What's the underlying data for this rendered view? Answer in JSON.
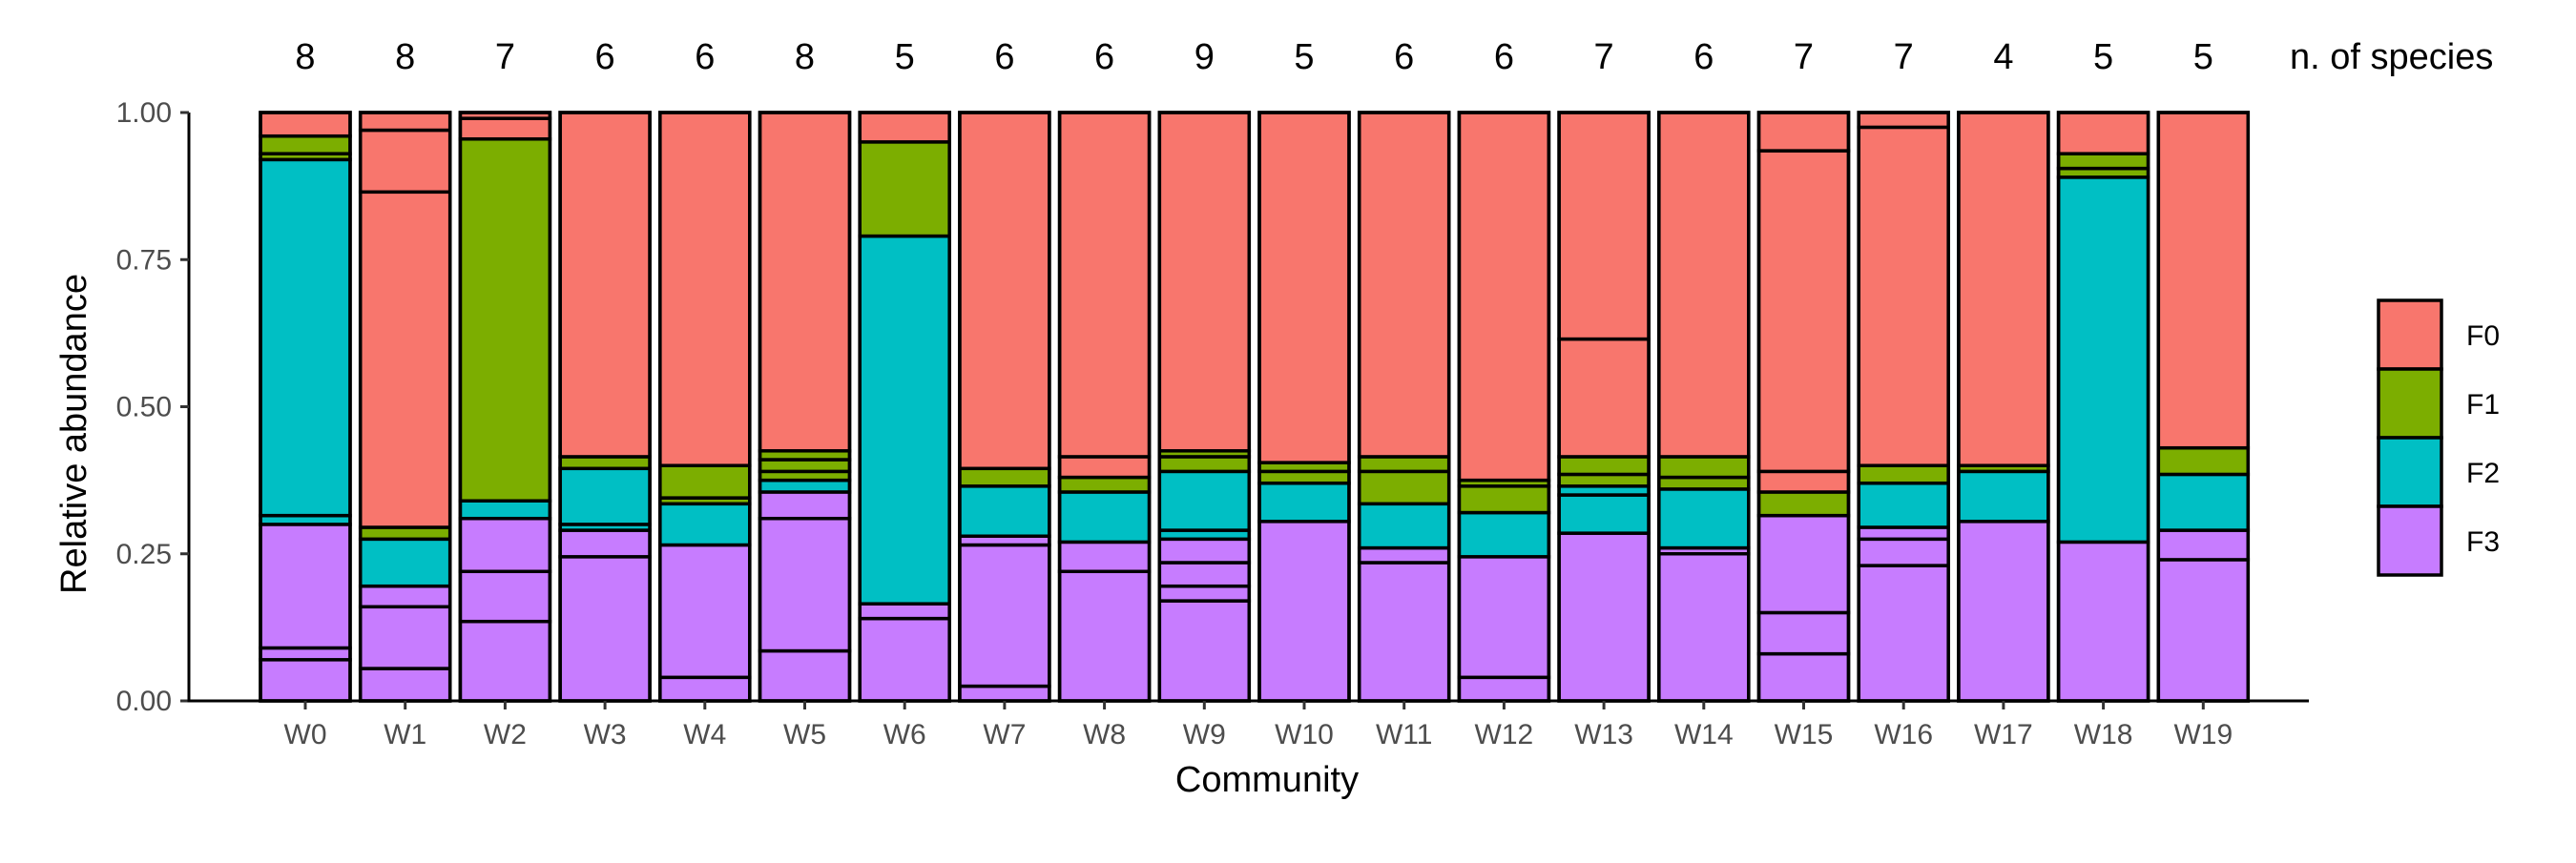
{
  "chart_data": {
    "type": "bar",
    "stacked": true,
    "xlabel": "Community",
    "ylabel": "Relative abundance",
    "ylim": [
      0,
      1
    ],
    "yticks": [
      "0.00",
      "0.25",
      "0.50",
      "0.75",
      "1.00"
    ],
    "count_header": "n. of species",
    "legend": {
      "position": "right",
      "title": ""
    },
    "groups": [
      {
        "name": "F0",
        "color": "#F8766D"
      },
      {
        "name": "F1",
        "color": "#7CAE00"
      },
      {
        "name": "F2",
        "color": "#00BFC4"
      },
      {
        "name": "F3",
        "color": "#C77CFF"
      }
    ],
    "categories": [
      "W0",
      "W1",
      "W2",
      "W3",
      "W4",
      "W5",
      "W6",
      "W7",
      "W8",
      "W9",
      "W10",
      "W11",
      "W12",
      "W13",
      "W14",
      "W15",
      "W16",
      "W17",
      "W18",
      "W19"
    ],
    "species_counts": [
      8,
      8,
      7,
      6,
      6,
      8,
      5,
      6,
      6,
      9,
      5,
      6,
      6,
      7,
      6,
      7,
      7,
      4,
      5,
      5
    ],
    "bars": [
      {
        "segments": [
          {
            "group": "F3",
            "value": 0.07
          },
          {
            "group": "F3",
            "value": 0.02
          },
          {
            "group": "F3",
            "value": 0.21
          },
          {
            "group": "F2",
            "value": 0.015
          },
          {
            "group": "F2",
            "value": 0.605
          },
          {
            "group": "F1",
            "value": 0.01
          },
          {
            "group": "F1",
            "value": 0.03
          },
          {
            "group": "F0",
            "value": 0.04
          }
        ]
      },
      {
        "segments": [
          {
            "group": "F3",
            "value": 0.055
          },
          {
            "group": "F3",
            "value": 0.105
          },
          {
            "group": "F3",
            "value": 0.035
          },
          {
            "group": "F2",
            "value": 0.08
          },
          {
            "group": "F1",
            "value": 0.02
          },
          {
            "group": "F0",
            "value": 0.57
          },
          {
            "group": "F0",
            "value": 0.105
          },
          {
            "group": "F0",
            "value": 0.03
          }
        ]
      },
      {
        "segments": [
          {
            "group": "F3",
            "value": 0.135
          },
          {
            "group": "F3",
            "value": 0.085
          },
          {
            "group": "F3",
            "value": 0.09
          },
          {
            "group": "F2",
            "value": 0.03
          },
          {
            "group": "F1",
            "value": 0.615
          },
          {
            "group": "F0",
            "value": 0.035
          },
          {
            "group": "F0",
            "value": 0.01
          }
        ]
      },
      {
        "segments": [
          {
            "group": "F3",
            "value": 0.245
          },
          {
            "group": "F3",
            "value": 0.045
          },
          {
            "group": "F2",
            "value": 0.01
          },
          {
            "group": "F2",
            "value": 0.095
          },
          {
            "group": "F1",
            "value": 0.02
          },
          {
            "group": "F0",
            "value": 0.585
          }
        ]
      },
      {
        "segments": [
          {
            "group": "F3",
            "value": 0.04
          },
          {
            "group": "F3",
            "value": 0.225
          },
          {
            "group": "F2",
            "value": 0.07
          },
          {
            "group": "F1",
            "value": 0.01
          },
          {
            "group": "F1",
            "value": 0.055
          },
          {
            "group": "F0",
            "value": 0.6
          }
        ]
      },
      {
        "segments": [
          {
            "group": "F3",
            "value": 0.085
          },
          {
            "group": "F3",
            "value": 0.225
          },
          {
            "group": "F3",
            "value": 0.045
          },
          {
            "group": "F2",
            "value": 0.02
          },
          {
            "group": "F1",
            "value": 0.015
          },
          {
            "group": "F1",
            "value": 0.02
          },
          {
            "group": "F1",
            "value": 0.015
          },
          {
            "group": "F0",
            "value": 0.575
          }
        ]
      },
      {
        "segments": [
          {
            "group": "F3",
            "value": 0.14
          },
          {
            "group": "F3",
            "value": 0.025
          },
          {
            "group": "F2",
            "value": 0.625
          },
          {
            "group": "F1",
            "value": 0.16
          },
          {
            "group": "F0",
            "value": 0.05
          }
        ]
      },
      {
        "segments": [
          {
            "group": "F3",
            "value": 0.025
          },
          {
            "group": "F3",
            "value": 0.24
          },
          {
            "group": "F3",
            "value": 0.015
          },
          {
            "group": "F2",
            "value": 0.085
          },
          {
            "group": "F1",
            "value": 0.03
          },
          {
            "group": "F0",
            "value": 0.605
          }
        ]
      },
      {
        "segments": [
          {
            "group": "F3",
            "value": 0.22
          },
          {
            "group": "F3",
            "value": 0.05
          },
          {
            "group": "F2",
            "value": 0.085
          },
          {
            "group": "F1",
            "value": 0.025
          },
          {
            "group": "F0",
            "value": 0.035
          },
          {
            "group": "F0",
            "value": 0.585
          }
        ]
      },
      {
        "segments": [
          {
            "group": "F3",
            "value": 0.17
          },
          {
            "group": "F3",
            "value": 0.025
          },
          {
            "group": "F3",
            "value": 0.04
          },
          {
            "group": "F3",
            "value": 0.04
          },
          {
            "group": "F2",
            "value": 0.015
          },
          {
            "group": "F2",
            "value": 0.1
          },
          {
            "group": "F1",
            "value": 0.025
          },
          {
            "group": "F1",
            "value": 0.01
          },
          {
            "group": "F0",
            "value": 0.575
          }
        ]
      },
      {
        "segments": [
          {
            "group": "F3",
            "value": 0.305
          },
          {
            "group": "F2",
            "value": 0.065
          },
          {
            "group": "F1",
            "value": 0.02
          },
          {
            "group": "F1",
            "value": 0.015
          },
          {
            "group": "F0",
            "value": 0.595
          }
        ]
      },
      {
        "segments": [
          {
            "group": "F3",
            "value": 0.235
          },
          {
            "group": "F3",
            "value": 0.025
          },
          {
            "group": "F2",
            "value": 0.075
          },
          {
            "group": "F1",
            "value": 0.055
          },
          {
            "group": "F1",
            "value": 0.025
          },
          {
            "group": "F0",
            "value": 0.585
          }
        ]
      },
      {
        "segments": [
          {
            "group": "F3",
            "value": 0.04
          },
          {
            "group": "F3",
            "value": 0.205
          },
          {
            "group": "F2",
            "value": 0.075
          },
          {
            "group": "F1",
            "value": 0.045
          },
          {
            "group": "F1",
            "value": 0.01
          },
          {
            "group": "F0",
            "value": 0.625
          }
        ]
      },
      {
        "segments": [
          {
            "group": "F3",
            "value": 0.285
          },
          {
            "group": "F2",
            "value": 0.065
          },
          {
            "group": "F2",
            "value": 0.015
          },
          {
            "group": "F1",
            "value": 0.02
          },
          {
            "group": "F1",
            "value": 0.03
          },
          {
            "group": "F0",
            "value": 0.2
          },
          {
            "group": "F0",
            "value": 0.385
          }
        ]
      },
      {
        "segments": [
          {
            "group": "F3",
            "value": 0.25
          },
          {
            "group": "F3",
            "value": 0.01
          },
          {
            "group": "F2",
            "value": 0.1
          },
          {
            "group": "F1",
            "value": 0.02
          },
          {
            "group": "F1",
            "value": 0.035
          },
          {
            "group": "F0",
            "value": 0.585
          }
        ]
      },
      {
        "segments": [
          {
            "group": "F3",
            "value": 0.08
          },
          {
            "group": "F3",
            "value": 0.07
          },
          {
            "group": "F3",
            "value": 0.165
          },
          {
            "group": "F1",
            "value": 0.04
          },
          {
            "group": "F0",
            "value": 0.035
          },
          {
            "group": "F0",
            "value": 0.545
          },
          {
            "group": "F0",
            "value": 0.065
          }
        ]
      },
      {
        "segments": [
          {
            "group": "F3",
            "value": 0.23
          },
          {
            "group": "F3",
            "value": 0.045
          },
          {
            "group": "F3",
            "value": 0.02
          },
          {
            "group": "F2",
            "value": 0.075
          },
          {
            "group": "F1",
            "value": 0.03
          },
          {
            "group": "F0",
            "value": 0.575
          },
          {
            "group": "F0",
            "value": 0.025
          }
        ]
      },
      {
        "segments": [
          {
            "group": "F3",
            "value": 0.305
          },
          {
            "group": "F2",
            "value": 0.085
          },
          {
            "group": "F1",
            "value": 0.01
          },
          {
            "group": "F0",
            "value": 0.6
          }
        ]
      },
      {
        "segments": [
          {
            "group": "F3",
            "value": 0.27
          },
          {
            "group": "F2",
            "value": 0.62
          },
          {
            "group": "F1",
            "value": 0.015
          },
          {
            "group": "F1",
            "value": 0.025
          },
          {
            "group": "F0",
            "value": 0.07
          }
        ]
      },
      {
        "segments": [
          {
            "group": "F3",
            "value": 0.24
          },
          {
            "group": "F3",
            "value": 0.05
          },
          {
            "group": "F2",
            "value": 0.095
          },
          {
            "group": "F1",
            "value": 0.045
          },
          {
            "group": "F0",
            "value": 0.57
          }
        ]
      }
    ]
  }
}
